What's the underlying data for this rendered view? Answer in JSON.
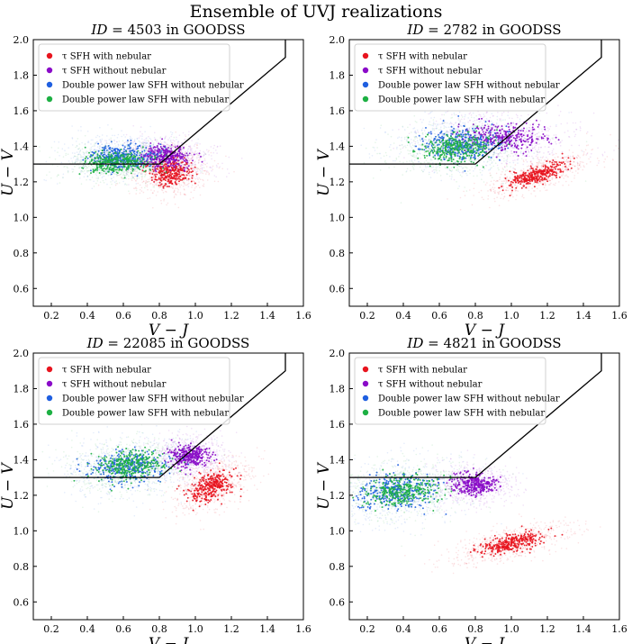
{
  "figure": {
    "title": "Ensemble of UVJ realizations"
  },
  "chart_data": [
    {
      "type": "scatter",
      "id_label": "ID",
      "id_value": "4503",
      "field_suffix": "in GOODSS",
      "xlabel": "V − J",
      "ylabel": "U − V",
      "xlim": [
        0.1,
        1.6
      ],
      "ylim": [
        0.5,
        2.0
      ],
      "xticks": [
        0.2,
        0.4,
        0.6,
        0.8,
        1.0,
        1.2,
        1.4,
        1.6
      ],
      "yticks": [
        0.6,
        0.8,
        1.0,
        1.2,
        1.4,
        1.6,
        1.8,
        2.0
      ],
      "xticklabels": [
        "0.2",
        "0.4",
        "0.6",
        "0.8",
        "1.0",
        "1.2",
        "1.4",
        "1.6"
      ],
      "yticklabels": [
        "0.6",
        "0.8",
        "1.0",
        "1.2",
        "1.4",
        "1.6",
        "1.8",
        "2.0"
      ],
      "boundary": {
        "x": [
          0.1,
          0.8,
          1.5,
          1.5
        ],
        "y": [
          1.3,
          1.3,
          1.9,
          2.0
        ]
      },
      "legend_position": "upper-left",
      "series": [
        {
          "name": "τ SFH with nebular",
          "color": "#e8141e",
          "center": [
            0.86,
            1.26
          ],
          "spread": [
            0.06,
            0.04
          ],
          "tilt": -0.4
        },
        {
          "name": "τ SFH without nebular",
          "color": "#8a0ac8",
          "center": [
            0.83,
            1.34
          ],
          "spread": [
            0.07,
            0.03
          ],
          "tilt": -0.1
        },
        {
          "name": "Double power law SFH without nebular",
          "color": "#1f5fe0",
          "center": [
            0.59,
            1.34
          ],
          "spread": [
            0.09,
            0.035
          ],
          "tilt": 0.1
        },
        {
          "name": "Double power law SFH with nebular",
          "color": "#1db043",
          "center": [
            0.57,
            1.31
          ],
          "spread": [
            0.09,
            0.03
          ],
          "tilt": 0.15
        }
      ]
    },
    {
      "type": "scatter",
      "id_label": "ID",
      "id_value": "2782",
      "field_suffix": "in GOODSS",
      "xlabel": "V − J",
      "ylabel": "U − V",
      "xlim": [
        0.1,
        1.6
      ],
      "ylim": [
        0.5,
        2.0
      ],
      "xticks": [
        0.2,
        0.4,
        0.6,
        0.8,
        1.0,
        1.2,
        1.4,
        1.6
      ],
      "yticks": [
        0.6,
        0.8,
        1.0,
        1.2,
        1.4,
        1.6,
        1.8,
        2.0
      ],
      "xticklabels": [
        "0.2",
        "0.4",
        "0.6",
        "0.8",
        "1.0",
        "1.2",
        "1.4",
        "1.6"
      ],
      "yticklabels": [
        "0.6",
        "0.8",
        "1.0",
        "1.2",
        "1.4",
        "1.6",
        "1.8",
        "2.0"
      ],
      "boundary": {
        "x": [
          0.1,
          0.8,
          1.5,
          1.5
        ],
        "y": [
          1.3,
          1.3,
          1.9,
          2.0
        ]
      },
      "legend_position": "upper-left",
      "series": [
        {
          "name": "τ SFH with nebular",
          "color": "#e8141e",
          "center": [
            1.14,
            1.24
          ],
          "spread": [
            0.05,
            0.08
          ],
          "tilt": -1.2
        },
        {
          "name": "τ SFH without nebular",
          "color": "#8a0ac8",
          "center": [
            0.95,
            1.45
          ],
          "spread": [
            0.12,
            0.04
          ],
          "tilt": -0.2
        },
        {
          "name": "Double power law SFH without nebular",
          "color": "#1f5fe0",
          "center": [
            0.72,
            1.41
          ],
          "spread": [
            0.1,
            0.045
          ],
          "tilt": 0.2
        },
        {
          "name": "Double power law SFH with nebular",
          "color": "#1db043",
          "center": [
            0.7,
            1.39
          ],
          "spread": [
            0.1,
            0.04
          ],
          "tilt": 0.25
        }
      ]
    },
    {
      "type": "scatter",
      "id_label": "ID",
      "id_value": "22085",
      "field_suffix": "in GOODSS",
      "xlabel": "V − J",
      "ylabel": "U − V",
      "xlim": [
        0.1,
        1.6
      ],
      "ylim": [
        0.5,
        2.0
      ],
      "xticks": [
        0.2,
        0.4,
        0.6,
        0.8,
        1.0,
        1.2,
        1.4,
        1.6
      ],
      "yticks": [
        0.6,
        0.8,
        1.0,
        1.2,
        1.4,
        1.6,
        1.8,
        2.0
      ],
      "xticklabels": [
        "0.2",
        "0.4",
        "0.6",
        "0.8",
        "1.0",
        "1.2",
        "1.4",
        "1.6"
      ],
      "yticklabels": [
        "0.6",
        "0.8",
        "1.0",
        "1.2",
        "1.4",
        "1.6",
        "1.8",
        "2.0"
      ],
      "boundary": {
        "x": [
          0.1,
          0.8,
          1.5,
          1.5
        ],
        "y": [
          1.3,
          1.3,
          1.9,
          2.0
        ]
      },
      "legend_position": "upper-left",
      "series": [
        {
          "name": "τ SFH with nebular",
          "color": "#e8141e",
          "center": [
            1.09,
            1.25
          ],
          "spread": [
            0.06,
            0.06
          ],
          "tilt": -0.9
        },
        {
          "name": "τ SFH without nebular",
          "color": "#8a0ac8",
          "center": [
            0.97,
            1.42
          ],
          "spread": [
            0.05,
            0.03
          ],
          "tilt": 0.0
        },
        {
          "name": "Double power law SFH without nebular",
          "color": "#1f5fe0",
          "center": [
            0.63,
            1.36
          ],
          "spread": [
            0.11,
            0.045
          ],
          "tilt": 0.35
        },
        {
          "name": "Double power law SFH with nebular",
          "color": "#1db043",
          "center": [
            0.64,
            1.37
          ],
          "spread": [
            0.1,
            0.04
          ],
          "tilt": 0.35
        }
      ]
    },
    {
      "type": "scatter",
      "id_label": "ID",
      "id_value": "4821",
      "field_suffix": "in GOODSS",
      "xlabel": "V − J",
      "ylabel": "U − V",
      "xlim": [
        0.1,
        1.6
      ],
      "ylim": [
        0.5,
        2.0
      ],
      "xticks": [
        0.2,
        0.4,
        0.6,
        0.8,
        1.0,
        1.2,
        1.4,
        1.6
      ],
      "yticks": [
        0.6,
        0.8,
        1.0,
        1.2,
        1.4,
        1.6,
        1.8,
        2.0
      ],
      "xticklabels": [
        "0.2",
        "0.4",
        "0.6",
        "0.8",
        "1.0",
        "1.2",
        "1.4",
        "1.6"
      ],
      "yticklabels": [
        "0.6",
        "0.8",
        "1.0",
        "1.2",
        "1.4",
        "1.6",
        "1.8",
        "2.0"
      ],
      "boundary": {
        "x": [
          0.1,
          0.8,
          1.5,
          1.5
        ],
        "y": [
          1.3,
          1.3,
          1.9,
          2.0
        ]
      },
      "legend_position": "upper-left",
      "series": [
        {
          "name": "τ SFH with nebular",
          "color": "#e8141e",
          "center": [
            1.0,
            0.93
          ],
          "spread": [
            0.06,
            0.09
          ],
          "tilt": -1.3
        },
        {
          "name": "τ SFH without nebular",
          "color": "#8a0ac8",
          "center": [
            0.8,
            1.26
          ],
          "spread": [
            0.06,
            0.03
          ],
          "tilt": 0.0
        },
        {
          "name": "Double power law SFH without nebular",
          "color": "#1f5fe0",
          "center": [
            0.37,
            1.22
          ],
          "spread": [
            0.12,
            0.05
          ],
          "tilt": 0.4
        },
        {
          "name": "Double power law SFH with nebular",
          "color": "#1db043",
          "center": [
            0.4,
            1.23
          ],
          "spread": [
            0.11,
            0.045
          ],
          "tilt": 0.4
        }
      ]
    }
  ]
}
